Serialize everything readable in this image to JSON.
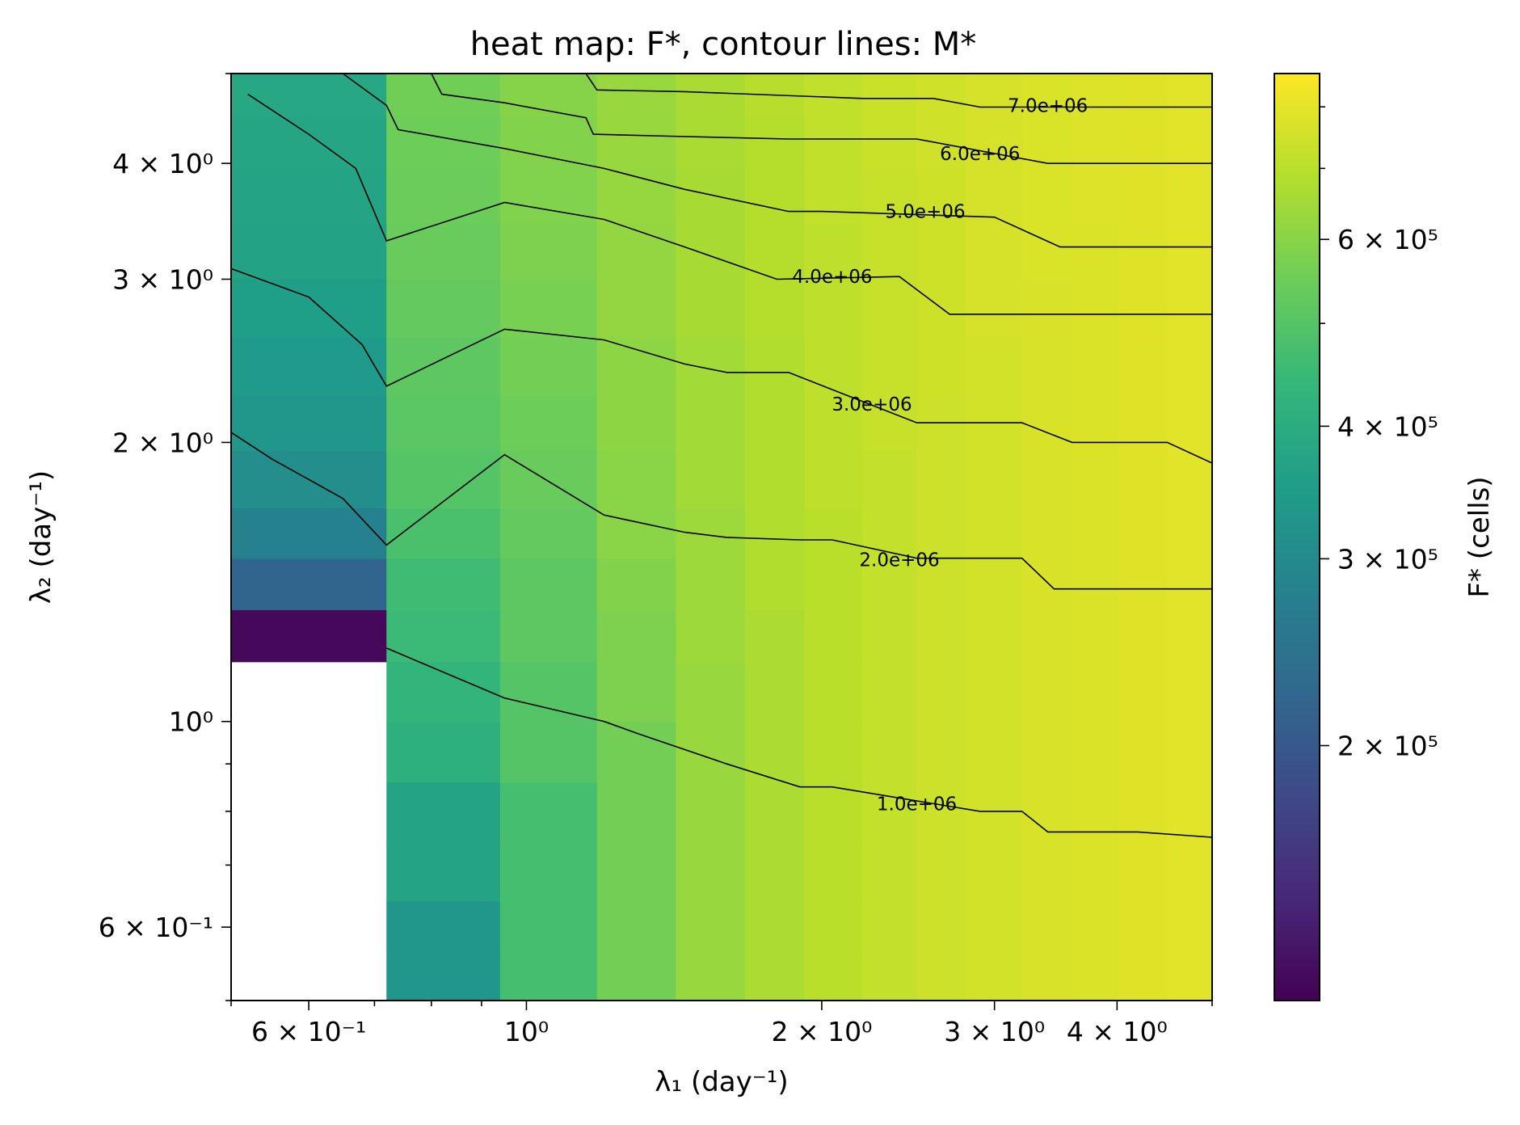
{
  "chart_data": {
    "type": "heatmap",
    "title": "heat map: F*, contour lines: M*",
    "xlabel": "λ₁  (day⁻¹)",
    "ylabel": "λ₂  (day⁻¹)",
    "x_scale": "log",
    "y_scale": "log",
    "xlim": [
      0.5,
      5.0
    ],
    "ylim": [
      0.5,
      5.0
    ],
    "x_ticks": [
      {
        "value": 0.6,
        "label": "6 × 10⁻¹"
      },
      {
        "value": 1.0,
        "label": "10⁰"
      },
      {
        "value": 2.0,
        "label": "2 × 10⁰"
      },
      {
        "value": 3.0,
        "label": "3 × 10⁰"
      },
      {
        "value": 4.0,
        "label": "4 × 10⁰"
      }
    ],
    "y_ticks": [
      {
        "value": 0.6,
        "label": "6 × 10⁻¹"
      },
      {
        "value": 1.0,
        "label": "10⁰"
      },
      {
        "value": 2.0,
        "label": "2 × 10⁰"
      },
      {
        "value": 3.0,
        "label": "3 × 10⁰"
      },
      {
        "value": 4.0,
        "label": "4 × 10⁰"
      }
    ],
    "colorbar": {
      "label": "F* (cells)",
      "scale": "log",
      "range": [
        115000,
        860000
      ],
      "colormap": "viridis",
      "ticks": [
        {
          "value": 200000,
          "label": "2 × 10⁵"
        },
        {
          "value": 300000,
          "label": "3 × 10⁵"
        },
        {
          "value": 400000,
          "label": "4 × 10⁵"
        },
        {
          "value": 600000,
          "label": "6 × 10⁵"
        }
      ]
    },
    "heatmap": {
      "x_edges": [
        0.5,
        0.72,
        0.94,
        1.18,
        1.42,
        1.67,
        1.92,
        2.2,
        2.5,
        2.8,
        3.2,
        3.6,
        4.0,
        4.5,
        5.0
      ],
      "y_edges": [
        0.5,
        0.56,
        0.64,
        0.74,
        0.86,
        1.0,
        1.16,
        1.32,
        1.5,
        1.7,
        1.96,
        2.25,
        2.6,
        3.0,
        3.45,
        3.95,
        4.5,
        5.0
      ],
      "values": [
        [
          null,
          330000,
          470000,
          560000,
          630000,
          670000,
          700000,
          720000,
          740000,
          755000,
          765000,
          775000,
          785000,
          790000
        ],
        [
          null,
          330000,
          470000,
          560000,
          630000,
          670000,
          700000,
          720000,
          740000,
          755000,
          765000,
          775000,
          785000,
          790000
        ],
        [
          null,
          370000,
          470000,
          560000,
          630000,
          670000,
          700000,
          720000,
          740000,
          755000,
          765000,
          775000,
          785000,
          790000
        ],
        [
          null,
          370000,
          470000,
          560000,
          630000,
          670000,
          700000,
          720000,
          740000,
          755000,
          765000,
          775000,
          785000,
          790000
        ],
        [
          null,
          410000,
          500000,
          560000,
          630000,
          670000,
          700000,
          720000,
          740000,
          755000,
          765000,
          775000,
          785000,
          790000
        ],
        [
          null,
          430000,
          500000,
          580000,
          630000,
          670000,
          700000,
          720000,
          740000,
          755000,
          765000,
          775000,
          785000,
          790000
        ],
        [
          120000,
          450000,
          520000,
          580000,
          640000,
          670000,
          700000,
          720000,
          740000,
          755000,
          765000,
          775000,
          785000,
          790000
        ],
        [
          220000,
          460000,
          520000,
          590000,
          640000,
          680000,
          700000,
          720000,
          740000,
          755000,
          765000,
          775000,
          785000,
          790000
        ],
        [
          280000,
          480000,
          530000,
          600000,
          640000,
          680000,
          700000,
          720000,
          740000,
          755000,
          765000,
          775000,
          785000,
          790000
        ],
        [
          310000,
          500000,
          540000,
          600000,
          650000,
          680000,
          710000,
          720000,
          740000,
          755000,
          765000,
          775000,
          785000,
          790000
        ],
        [
          330000,
          510000,
          550000,
          610000,
          650000,
          680000,
          710000,
          730000,
          740000,
          755000,
          765000,
          775000,
          785000,
          790000
        ],
        [
          340000,
          520000,
          560000,
          610000,
          650000,
          680000,
          710000,
          730000,
          745000,
          755000,
          765000,
          775000,
          785000,
          790000
        ],
        [
          355000,
          530000,
          570000,
          620000,
          660000,
          690000,
          710000,
          730000,
          745000,
          760000,
          765000,
          775000,
          785000,
          790000
        ],
        [
          365000,
          540000,
          580000,
          620000,
          660000,
          690000,
          710000,
          730000,
          745000,
          760000,
          770000,
          775000,
          785000,
          790000
        ],
        [
          370000,
          545000,
          585000,
          625000,
          660000,
          690000,
          715000,
          730000,
          745000,
          760000,
          770000,
          780000,
          785000,
          790000
        ],
        [
          375000,
          550000,
          590000,
          630000,
          665000,
          690000,
          715000,
          735000,
          750000,
          760000,
          770000,
          780000,
          785000,
          790000
        ],
        [
          380000,
          555000,
          595000,
          630000,
          665000,
          695000,
          715000,
          735000,
          750000,
          760000,
          770000,
          780000,
          785000,
          790000
        ]
      ]
    },
    "contours": [
      {
        "level": "1.0e+06",
        "points": [
          [
            0.72,
            1.2
          ],
          [
            0.95,
            1.06
          ],
          [
            1.2,
            1.0
          ],
          [
            1.3,
            0.97
          ],
          [
            1.6,
            0.9
          ],
          [
            1.9,
            0.85
          ],
          [
            2.05,
            0.85
          ],
          [
            2.9,
            0.8
          ],
          [
            3.2,
            0.8
          ],
          [
            3.4,
            0.76
          ],
          [
            4.2,
            0.76
          ],
          [
            5.0,
            0.75
          ]
        ],
        "label_at": [
          2.5,
          0.815
        ]
      },
      {
        "level": "2.0e+06",
        "points": [
          [
            0.5,
            2.05
          ],
          [
            0.55,
            1.92
          ],
          [
            0.65,
            1.74
          ],
          [
            0.72,
            1.55
          ],
          [
            0.95,
            1.94
          ],
          [
            1.2,
            1.67
          ],
          [
            1.45,
            1.6
          ],
          [
            1.6,
            1.58
          ],
          [
            1.9,
            1.57
          ],
          [
            2.05,
            1.57
          ],
          [
            2.5,
            1.5
          ],
          [
            2.9,
            1.5
          ],
          [
            3.2,
            1.5
          ],
          [
            3.45,
            1.39
          ],
          [
            5.0,
            1.39
          ]
        ],
        "label_at": [
          2.4,
          1.495
        ]
      },
      {
        "level": "3.0e+06",
        "points": [
          [
            0.5,
            3.08
          ],
          [
            0.6,
            2.87
          ],
          [
            0.68,
            2.55
          ],
          [
            0.72,
            2.3
          ],
          [
            0.95,
            2.65
          ],
          [
            1.2,
            2.58
          ],
          [
            1.45,
            2.43
          ],
          [
            1.6,
            2.38
          ],
          [
            1.85,
            2.38
          ],
          [
            2.5,
            2.1
          ],
          [
            3.2,
            2.1
          ],
          [
            3.6,
            2.0
          ],
          [
            4.5,
            2.0
          ],
          [
            5.0,
            1.9
          ]
        ],
        "label_at": [
          2.25,
          2.2
        ]
      },
      {
        "level": "4.0e+06",
        "points": [
          [
            0.52,
            4.75
          ],
          [
            0.6,
            4.3
          ],
          [
            0.67,
            3.95
          ],
          [
            0.72,
            3.3
          ],
          [
            0.95,
            3.63
          ],
          [
            1.2,
            3.48
          ],
          [
            1.45,
            3.25
          ],
          [
            1.8,
            3.0
          ],
          [
            2.4,
            3.02
          ],
          [
            2.7,
            2.75
          ],
          [
            5.0,
            2.75
          ]
        ],
        "label_at": [
          2.05,
          3.02
        ]
      },
      {
        "level": "5.0e+06",
        "points": [
          [
            0.65,
            5.0
          ],
          [
            0.72,
            4.62
          ],
          [
            0.74,
            4.35
          ],
          [
            0.95,
            4.15
          ],
          [
            1.2,
            3.95
          ],
          [
            1.45,
            3.75
          ],
          [
            1.85,
            3.55
          ],
          [
            2.0,
            3.55
          ],
          [
            3.0,
            3.5
          ],
          [
            3.5,
            3.25
          ],
          [
            5.0,
            3.25
          ]
        ],
        "label_at": [
          2.55,
          3.55
        ]
      },
      {
        "level": "6.0e+06",
        "points": [
          [
            0.8,
            5.0
          ],
          [
            0.82,
            4.75
          ],
          [
            0.95,
            4.65
          ],
          [
            1.15,
            4.48
          ],
          [
            1.17,
            4.3
          ],
          [
            1.4,
            4.28
          ],
          [
            1.85,
            4.25
          ],
          [
            2.5,
            4.25
          ],
          [
            3.4,
            4.0
          ],
          [
            5.0,
            4.0
          ]
        ],
        "label_at": [
          2.9,
          4.1
        ]
      },
      {
        "level": "7.0e+06",
        "points": [
          [
            1.15,
            5.0
          ],
          [
            1.18,
            4.8
          ],
          [
            1.45,
            4.78
          ],
          [
            2.2,
            4.7
          ],
          [
            2.6,
            4.7
          ],
          [
            2.9,
            4.6
          ],
          [
            5.0,
            4.6
          ]
        ],
        "label_at": [
          3.4,
          4.62
        ]
      }
    ]
  }
}
